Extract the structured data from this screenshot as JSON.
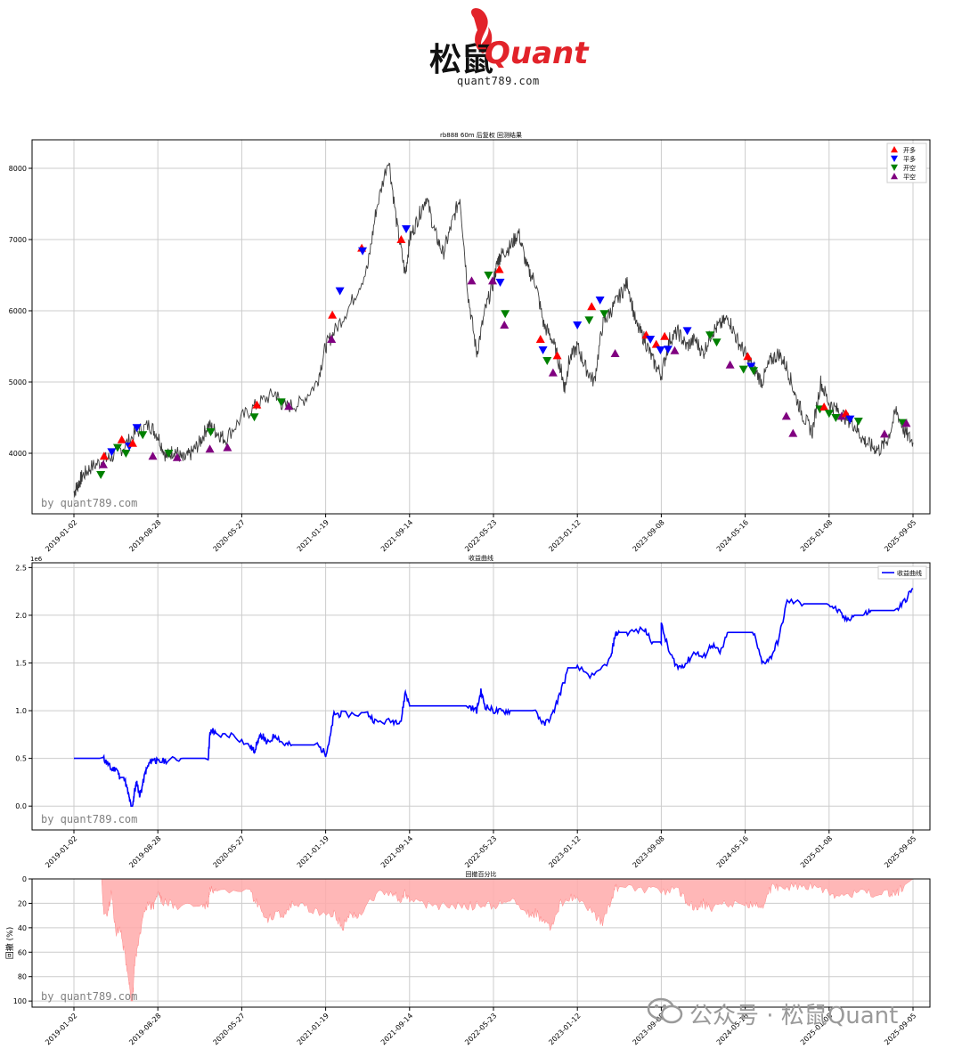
{
  "logo": {
    "brand_cn": "松鼠",
    "brand_en": "Quant",
    "url": "quant789.com"
  },
  "watermark": {
    "corner_text": "by quant789.com",
    "wechat_text": "公众号 · 松鼠Quant"
  },
  "colors": {
    "price_line": "#3a3a3a",
    "open_long": "#ff0000",
    "close_long": "#0000ff",
    "open_short": "#008000",
    "close_short": "#800080",
    "equity_line": "#0000ff",
    "drawdown_fill": "#ffaaaa",
    "grid": "#cccccc"
  },
  "x_ticks": [
    "2019-01-02",
    "2019-08-28",
    "2020-05-27",
    "2021-01-19",
    "2021-09-14",
    "2022-05-23",
    "2023-01-12",
    "2023-09-08",
    "2024-05-16",
    "2025-01-08",
    "2025-09-05"
  ],
  "chart_data": [
    {
      "type": "line",
      "title": "rb888 60m 后复权 回测结果",
      "ylim": [
        3150,
        8400
      ],
      "yticks": [
        4000,
        5000,
        6000,
        7000,
        8000
      ],
      "grid": true,
      "legend_position": "top-right",
      "legend": [
        {
          "label": "开多",
          "marker": "triangle-up",
          "color": "#ff0000"
        },
        {
          "label": "平多",
          "marker": "triangle-down",
          "color": "#0000ff"
        },
        {
          "label": "开空",
          "marker": "triangle-down",
          "color": "#008000"
        },
        {
          "label": "平空",
          "marker": "triangle-up",
          "color": "#800080"
        }
      ],
      "series": [
        {
          "x": [
            0,
            0.005,
            0.01,
            0.02,
            0.035,
            0.045,
            0.06,
            0.075,
            0.09,
            0.1,
            0.11,
            0.12,
            0.13,
            0.14,
            0.15,
            0.16,
            0.17,
            0.18,
            0.2,
            0.22,
            0.24,
            0.25,
            0.27,
            0.29,
            0.3,
            0.31,
            0.33,
            0.35,
            0.36,
            0.375,
            0.385,
            0.395,
            0.4,
            0.41,
            0.42,
            0.43,
            0.44,
            0.45,
            0.46,
            0.47,
            0.48,
            0.49,
            0.5,
            0.505,
            0.51,
            0.52,
            0.53,
            0.54,
            0.55,
            0.56,
            0.57,
            0.58,
            0.585,
            0.59,
            0.6,
            0.61,
            0.62,
            0.63,
            0.64,
            0.65,
            0.66,
            0.67,
            0.68,
            0.69,
            0.7,
            0.71,
            0.72,
            0.73,
            0.74,
            0.75,
            0.76,
            0.77,
            0.78,
            0.79,
            0.8,
            0.81,
            0.82,
            0.83,
            0.84,
            0.85,
            0.86,
            0.87,
            0.88,
            0.89,
            0.9,
            0.91,
            0.92,
            0.93,
            0.94,
            0.95,
            0.96,
            0.97,
            0.98,
            0.99,
            1.0
          ],
          "y": [
            3450,
            3560,
            3680,
            3800,
            3900,
            3950,
            4100,
            4300,
            4400,
            4250,
            3950,
            4050,
            3900,
            4000,
            4150,
            4400,
            4300,
            4200,
            4500,
            4700,
            4850,
            4650,
            4700,
            5000,
            5500,
            5700,
            6100,
            6600,
            7400,
            8150,
            7200,
            6500,
            7000,
            7300,
            7600,
            7100,
            6800,
            7200,
            7600,
            6200,
            5400,
            6000,
            6400,
            6700,
            6800,
            6900,
            7100,
            6600,
            6400,
            5800,
            5600,
            5200,
            4900,
            5300,
            5500,
            5200,
            5000,
            5800,
            6000,
            6200,
            6400,
            5800,
            5600,
            5300,
            5100,
            5600,
            5700,
            5500,
            5600,
            5400,
            5700,
            5800,
            5900,
            5600,
            5400,
            5200,
            5000,
            5300,
            5400,
            5200,
            4800,
            4500,
            4300,
            5000,
            4700,
            4600,
            4500,
            4400,
            4200,
            4100,
            4050,
            4200,
            4600,
            4300,
            4150
          ]
        }
      ],
      "signals": [
        {
          "x": 0.036,
          "y": 3960,
          "kind": "open_long"
        },
        {
          "x": 0.035,
          "y": 3840,
          "kind": "close_short"
        },
        {
          "x": 0.032,
          "y": 3700,
          "kind": "open_short"
        },
        {
          "x": 0.045,
          "y": 4020,
          "kind": "close_long"
        },
        {
          "x": 0.052,
          "y": 4080,
          "kind": "open_short"
        },
        {
          "x": 0.057,
          "y": 4190,
          "kind": "open_long"
        },
        {
          "x": 0.062,
          "y": 4000,
          "kind": "open_short"
        },
        {
          "x": 0.066,
          "y": 4100,
          "kind": "close_long"
        },
        {
          "x": 0.07,
          "y": 4140,
          "kind": "open_long"
        },
        {
          "x": 0.075,
          "y": 4360,
          "kind": "close_long"
        },
        {
          "x": 0.082,
          "y": 4260,
          "kind": "open_short"
        },
        {
          "x": 0.094,
          "y": 3960,
          "kind": "close_short"
        },
        {
          "x": 0.113,
          "y": 4000,
          "kind": "open_short"
        },
        {
          "x": 0.123,
          "y": 3940,
          "kind": "close_short"
        },
        {
          "x": 0.163,
          "y": 4300,
          "kind": "open_short"
        },
        {
          "x": 0.162,
          "y": 4060,
          "kind": "close_short"
        },
        {
          "x": 0.183,
          "y": 4080,
          "kind": "close_short"
        },
        {
          "x": 0.215,
          "y": 4510,
          "kind": "open_short"
        },
        {
          "x": 0.218,
          "y": 4680,
          "kind": "open_long"
        },
        {
          "x": 0.247,
          "y": 4720,
          "kind": "open_short"
        },
        {
          "x": 0.256,
          "y": 4660,
          "kind": "close_short"
        },
        {
          "x": 0.307,
          "y": 5600,
          "kind": "close_short"
        },
        {
          "x": 0.308,
          "y": 5940,
          "kind": "open_long"
        },
        {
          "x": 0.317,
          "y": 6280,
          "kind": "close_long"
        },
        {
          "x": 0.343,
          "y": 6880,
          "kind": "open_long"
        },
        {
          "x": 0.344,
          "y": 6840,
          "kind": "close_long"
        },
        {
          "x": 0.39,
          "y": 7000,
          "kind": "open_long"
        },
        {
          "x": 0.396,
          "y": 7150,
          "kind": "close_long"
        },
        {
          "x": 0.474,
          "y": 6420,
          "kind": "close_short"
        },
        {
          "x": 0.494,
          "y": 6500,
          "kind": "open_short"
        },
        {
          "x": 0.499,
          "y": 6420,
          "kind": "close_short"
        },
        {
          "x": 0.507,
          "y": 6580,
          "kind": "open_long"
        },
        {
          "x": 0.508,
          "y": 6400,
          "kind": "close_long"
        },
        {
          "x": 0.514,
          "y": 5960,
          "kind": "open_short"
        },
        {
          "x": 0.513,
          "y": 5800,
          "kind": "close_short"
        },
        {
          "x": 0.556,
          "y": 5600,
          "kind": "open_long"
        },
        {
          "x": 0.559,
          "y": 5450,
          "kind": "close_long"
        },
        {
          "x": 0.564,
          "y": 5300,
          "kind": "open_short"
        },
        {
          "x": 0.571,
          "y": 5130,
          "kind": "close_short"
        },
        {
          "x": 0.576,
          "y": 5370,
          "kind": "open_long"
        },
        {
          "x": 0.6,
          "y": 5800,
          "kind": "close_long"
        },
        {
          "x": 0.614,
          "y": 5870,
          "kind": "open_short"
        },
        {
          "x": 0.617,
          "y": 6060,
          "kind": "open_long"
        },
        {
          "x": 0.627,
          "y": 6150,
          "kind": "close_long"
        },
        {
          "x": 0.632,
          "y": 5960,
          "kind": "open_short"
        },
        {
          "x": 0.645,
          "y": 5400,
          "kind": "close_short"
        },
        {
          "x": 0.682,
          "y": 5660,
          "kind": "open_long"
        },
        {
          "x": 0.687,
          "y": 5600,
          "kind": "close_long"
        },
        {
          "x": 0.694,
          "y": 5530,
          "kind": "open_long"
        },
        {
          "x": 0.699,
          "y": 5450,
          "kind": "close_long"
        },
        {
          "x": 0.704,
          "y": 5640,
          "kind": "open_long"
        },
        {
          "x": 0.708,
          "y": 5460,
          "kind": "close_long"
        },
        {
          "x": 0.716,
          "y": 5440,
          "kind": "close_short"
        },
        {
          "x": 0.731,
          "y": 5720,
          "kind": "close_long"
        },
        {
          "x": 0.758,
          "y": 5660,
          "kind": "open_short"
        },
        {
          "x": 0.766,
          "y": 5560,
          "kind": "open_short"
        },
        {
          "x": 0.782,
          "y": 5240,
          "kind": "close_short"
        },
        {
          "x": 0.798,
          "y": 5180,
          "kind": "open_short"
        },
        {
          "x": 0.803,
          "y": 5360,
          "kind": "open_long"
        },
        {
          "x": 0.807,
          "y": 5220,
          "kind": "close_long"
        },
        {
          "x": 0.81,
          "y": 5160,
          "kind": "open_short"
        },
        {
          "x": 0.849,
          "y": 4520,
          "kind": "close_short"
        },
        {
          "x": 0.857,
          "y": 4280,
          "kind": "close_short"
        },
        {
          "x": 0.889,
          "y": 4620,
          "kind": "open_short"
        },
        {
          "x": 0.894,
          "y": 4650,
          "kind": "open_long"
        },
        {
          "x": 0.9,
          "y": 4560,
          "kind": "open_short"
        },
        {
          "x": 0.908,
          "y": 4500,
          "kind": "open_short"
        },
        {
          "x": 0.915,
          "y": 4520,
          "kind": "close_short"
        },
        {
          "x": 0.92,
          "y": 4560,
          "kind": "open_long"
        },
        {
          "x": 0.925,
          "y": 4480,
          "kind": "close_long"
        },
        {
          "x": 0.935,
          "y": 4450,
          "kind": "open_short"
        },
        {
          "x": 0.966,
          "y": 4270,
          "kind": "close_short"
        },
        {
          "x": 0.988,
          "y": 4430,
          "kind": "open_short"
        },
        {
          "x": 0.992,
          "y": 4420,
          "kind": "close_short"
        }
      ]
    },
    {
      "type": "line",
      "title": "收益曲线",
      "offset_label": "1e6",
      "ylim": [
        -0.25,
        2.55
      ],
      "yticks": [
        0.0,
        0.5,
        1.0,
        1.5,
        2.0,
        2.5
      ],
      "grid": true,
      "legend_position": "top-right",
      "series": [
        {
          "name": "收益曲线",
          "x": [
            0,
            0.035,
            0.04,
            0.045,
            0.05,
            0.055,
            0.06,
            0.065,
            0.068,
            0.07,
            0.072,
            0.075,
            0.078,
            0.08,
            0.085,
            0.09,
            0.095,
            0.1,
            0.11,
            0.13,
            0.16,
            0.162,
            0.165,
            0.17,
            0.19,
            0.21,
            0.215,
            0.22,
            0.225,
            0.23,
            0.24,
            0.25,
            0.26,
            0.29,
            0.3,
            0.305,
            0.31,
            0.32,
            0.35,
            0.36,
            0.38,
            0.39,
            0.395,
            0.4,
            0.45,
            0.47,
            0.48,
            0.485,
            0.49,
            0.5,
            0.51,
            0.52,
            0.55,
            0.56,
            0.57,
            0.58,
            0.59,
            0.6,
            0.62,
            0.64,
            0.645,
            0.65,
            0.66,
            0.68,
            0.69,
            0.7,
            0.7,
            0.71,
            0.72,
            0.73,
            0.74,
            0.75,
            0.76,
            0.77,
            0.78,
            0.8,
            0.81,
            0.82,
            0.83,
            0.84,
            0.85,
            0.87,
            0.88,
            0.9,
            0.91,
            0.92,
            0.93,
            0.94,
            0.95,
            0.96,
            0.98,
            0.99,
            1.0
          ],
          "y": [
            0.5,
            0.5,
            0.45,
            0.38,
            0.4,
            0.3,
            0.3,
            0.12,
            0.0,
            0.0,
            0.15,
            0.25,
            0.12,
            0.15,
            0.35,
            0.45,
            0.5,
            0.46,
            0.48,
            0.5,
            0.5,
            0.75,
            0.8,
            0.74,
            0.75,
            0.62,
            0.58,
            0.7,
            0.74,
            0.65,
            0.75,
            0.65,
            0.64,
            0.64,
            0.55,
            0.7,
            0.97,
            0.96,
            0.97,
            0.88,
            0.89,
            0.9,
            1.2,
            1.05,
            1.05,
            1.05,
            1.0,
            1.2,
            1.05,
            1.0,
            0.99,
            1.0,
            1.0,
            0.85,
            0.95,
            1.2,
            1.45,
            1.45,
            1.35,
            1.55,
            1.8,
            1.82,
            1.82,
            1.85,
            1.72,
            1.72,
            1.9,
            1.6,
            1.45,
            1.5,
            1.62,
            1.55,
            1.7,
            1.6,
            1.82,
            1.82,
            1.82,
            1.5,
            1.55,
            1.75,
            2.15,
            2.12,
            2.12,
            2.12,
            2.05,
            1.95,
            2.0,
            2.0,
            2.05,
            2.05,
            2.05,
            2.15,
            2.28
          ]
        }
      ]
    },
    {
      "type": "area",
      "title": "回撤百分比",
      "ylabel": "回撤 (%)",
      "ylim": [
        0,
        105
      ],
      "inverted": true,
      "yticks": [
        0,
        20,
        40,
        60,
        80,
        100
      ],
      "grid": true,
      "series": [
        {
          "x": [
            0,
            0.033,
            0.035,
            0.04,
            0.045,
            0.05,
            0.055,
            0.06,
            0.065,
            0.068,
            0.07,
            0.072,
            0.075,
            0.08,
            0.085,
            0.09,
            0.095,
            0.1,
            0.105,
            0.12,
            0.15,
            0.16,
            0.162,
            0.17,
            0.21,
            0.22,
            0.23,
            0.24,
            0.25,
            0.26,
            0.28,
            0.3,
            0.31,
            0.32,
            0.33,
            0.34,
            0.36,
            0.38,
            0.39,
            0.395,
            0.4,
            0.42,
            0.44,
            0.46,
            0.48,
            0.5,
            0.52,
            0.54,
            0.55,
            0.56,
            0.57,
            0.58,
            0.59,
            0.6,
            0.62,
            0.63,
            0.64,
            0.645,
            0.65,
            0.68,
            0.7,
            0.72,
            0.73,
            0.74,
            0.75,
            0.76,
            0.78,
            0.8,
            0.81,
            0.82,
            0.83,
            0.84,
            0.86,
            0.88,
            0.9,
            0.91,
            0.93,
            0.95,
            0.97,
            0.98,
            0.99,
            1.0
          ],
          "y": [
            0,
            0,
            25,
            30,
            10,
            45,
            40,
            60,
            80,
            100,
            100,
            70,
            60,
            40,
            22,
            22,
            22,
            10,
            18,
            22,
            22,
            22,
            8,
            12,
            12,
            22,
            35,
            28,
            30,
            20,
            25,
            28,
            28,
            40,
            28,
            30,
            12,
            12,
            18,
            10,
            18,
            22,
            22,
            22,
            22,
            22,
            18,
            28,
            28,
            35,
            40,
            20,
            15,
            15,
            30,
            35,
            20,
            8,
            6,
            8,
            10,
            10,
            18,
            25,
            20,
            25,
            20,
            22,
            20,
            25,
            8,
            6,
            6,
            6,
            10,
            15,
            12,
            12,
            12,
            12,
            5,
            0
          ]
        }
      ]
    }
  ]
}
